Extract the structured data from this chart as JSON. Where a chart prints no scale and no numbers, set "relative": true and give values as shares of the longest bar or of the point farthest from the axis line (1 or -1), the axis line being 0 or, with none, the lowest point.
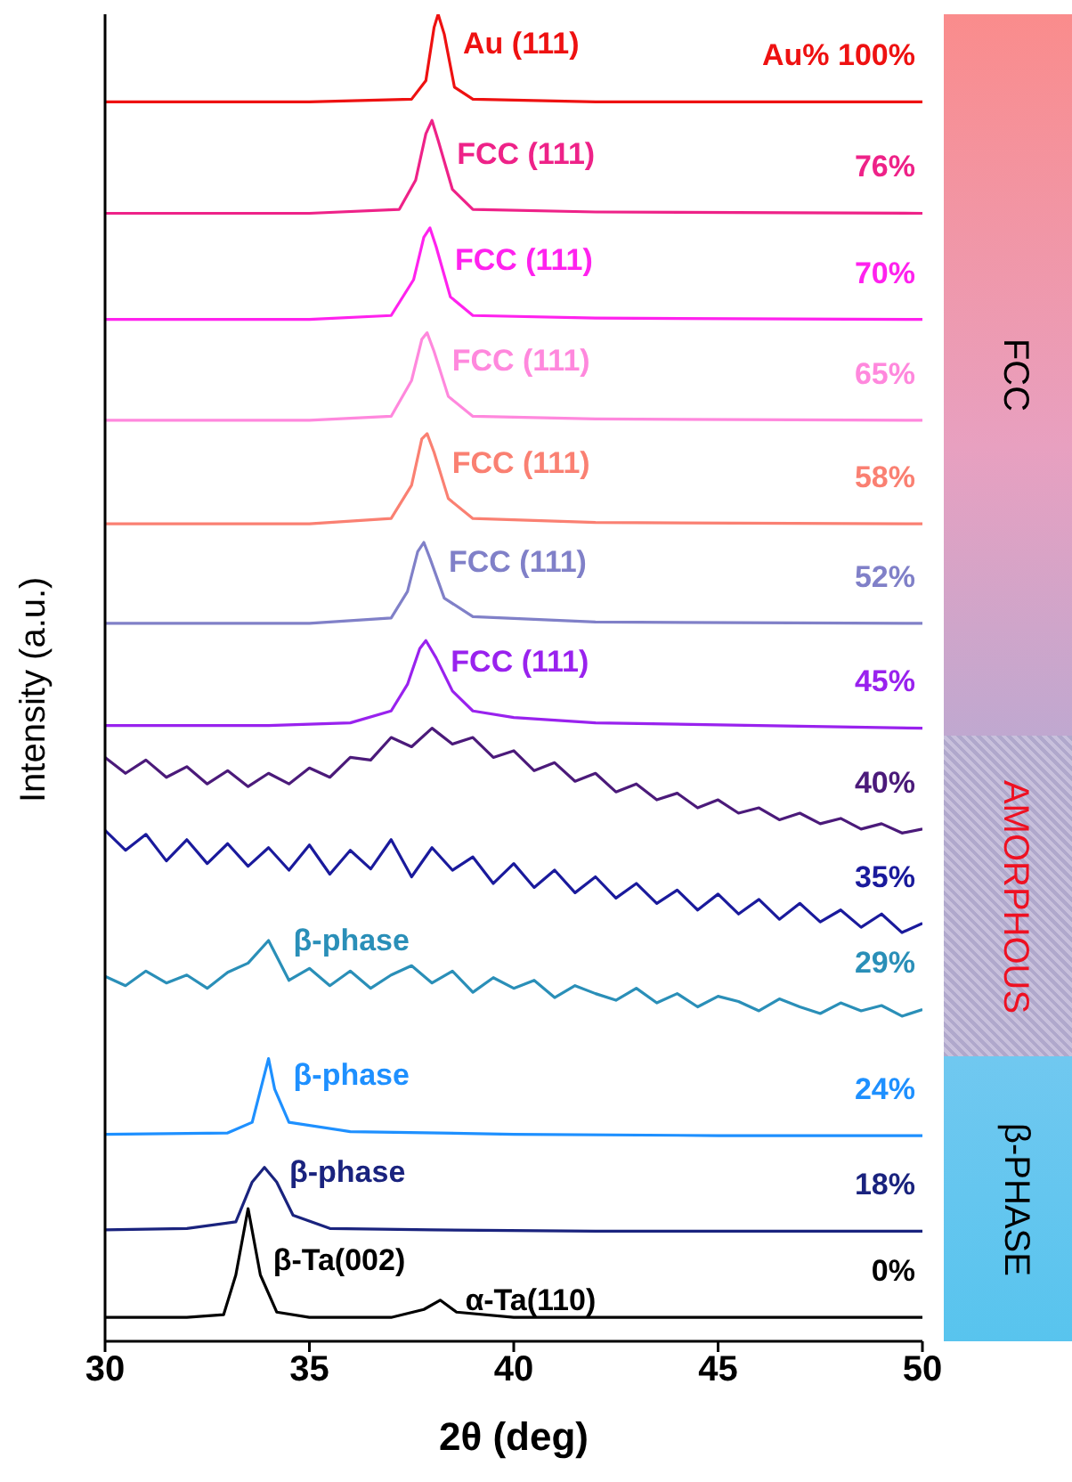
{
  "chart_data": {
    "type": "line",
    "xlabel": "2θ (deg)",
    "ylabel": "Intensity (a.u.)",
    "relative": true,
    "xlim": [
      30,
      50
    ],
    "xticks": [
      30,
      35,
      40,
      45,
      50
    ],
    "series": [
      {
        "name": "Au% 100%",
        "color": "#ee1111",
        "x": [
          30,
          35,
          37.5,
          37.85,
          38.05,
          38.15,
          38.3,
          38.55,
          39,
          42,
          50
        ],
        "values": [
          0.934,
          0.934,
          0.936,
          0.95,
          0.99,
          1,
          0.985,
          0.945,
          0.936,
          0.934,
          0.934
        ]
      },
      {
        "name": "76%",
        "color": "#ee2288",
        "x": [
          30,
          35,
          37.2,
          37.6,
          37.85,
          38.0,
          38.15,
          38.5,
          39,
          42,
          50
        ],
        "values": [
          0.85,
          0.85,
          0.853,
          0.875,
          0.91,
          0.92,
          0.905,
          0.868,
          0.853,
          0.851,
          0.85
        ]
      },
      {
        "name": "70%",
        "color": "#ff22ee",
        "x": [
          30,
          35,
          37,
          37.55,
          37.8,
          37.95,
          38.1,
          38.45,
          39,
          42,
          50
        ],
        "values": [
          0.77,
          0.77,
          0.773,
          0.8,
          0.832,
          0.839,
          0.825,
          0.787,
          0.773,
          0.771,
          0.77
        ]
      },
      {
        "name": "65%",
        "color": "#ff88dd",
        "x": [
          30,
          35,
          37,
          37.5,
          37.75,
          37.88,
          38.05,
          38.4,
          39,
          42,
          50
        ],
        "values": [
          0.694,
          0.694,
          0.697,
          0.724,
          0.755,
          0.76,
          0.746,
          0.712,
          0.697,
          0.695,
          0.694
        ]
      },
      {
        "name": "58%",
        "color": "#fa8072",
        "x": [
          30,
          35,
          37,
          37.5,
          37.75,
          37.88,
          38.05,
          38.4,
          39,
          42,
          50
        ],
        "values": [
          0.616,
          0.616,
          0.62,
          0.645,
          0.68,
          0.684,
          0.67,
          0.635,
          0.62,
          0.617,
          0.616
        ]
      },
      {
        "name": "52%",
        "color": "#8080c8",
        "x": [
          30,
          35,
          37,
          37.4,
          37.65,
          37.8,
          37.95,
          38.3,
          39,
          42,
          50
        ],
        "values": [
          0.541,
          0.541,
          0.545,
          0.565,
          0.595,
          0.602,
          0.59,
          0.56,
          0.546,
          0.542,
          0.541
        ]
      },
      {
        "name": "45%",
        "color": "#9922ee",
        "x": [
          30,
          34,
          36,
          37,
          37.4,
          37.7,
          37.85,
          38.1,
          38.5,
          39,
          40,
          42,
          46,
          50
        ],
        "values": [
          0.464,
          0.464,
          0.466,
          0.475,
          0.495,
          0.522,
          0.528,
          0.515,
          0.49,
          0.475,
          0.47,
          0.466,
          0.464,
          0.462
        ]
      },
      {
        "name": "40%",
        "color": "#4b1a7a",
        "x": [
          30,
          30.5,
          31,
          31.5,
          32,
          32.5,
          33,
          33.5,
          34,
          34.5,
          35,
          35.5,
          36,
          36.5,
          37,
          37.5,
          38,
          38.5,
          39,
          39.5,
          40,
          40.5,
          41,
          41.5,
          42,
          42.5,
          43,
          43.5,
          44,
          44.5,
          45,
          45.5,
          46,
          46.5,
          47,
          47.5,
          48,
          48.5,
          49,
          49.5,
          50
        ],
        "values": [
          0.44,
          0.428,
          0.438,
          0.425,
          0.433,
          0.42,
          0.43,
          0.418,
          0.428,
          0.42,
          0.432,
          0.425,
          0.44,
          0.438,
          0.455,
          0.448,
          0.462,
          0.45,
          0.455,
          0.44,
          0.445,
          0.43,
          0.436,
          0.422,
          0.428,
          0.414,
          0.42,
          0.408,
          0.413,
          0.402,
          0.408,
          0.398,
          0.402,
          0.393,
          0.398,
          0.39,
          0.394,
          0.386,
          0.39,
          0.383,
          0.386
        ]
      },
      {
        "name": "35%",
        "color": "#1a1a9c",
        "x": [
          30,
          30.5,
          31,
          31.5,
          32,
          32.5,
          33,
          33.5,
          34,
          34.5,
          35,
          35.5,
          36,
          36.5,
          37,
          37.5,
          38,
          38.5,
          39,
          39.5,
          40,
          40.5,
          41,
          41.5,
          42,
          42.5,
          43,
          43.5,
          44,
          44.5,
          45,
          45.5,
          46,
          46.5,
          47,
          47.5,
          48,
          48.5,
          49,
          49.5,
          50
        ],
        "values": [
          0.385,
          0.37,
          0.382,
          0.362,
          0.378,
          0.36,
          0.375,
          0.358,
          0.372,
          0.355,
          0.374,
          0.352,
          0.37,
          0.356,
          0.378,
          0.35,
          0.372,
          0.355,
          0.365,
          0.345,
          0.36,
          0.342,
          0.355,
          0.338,
          0.35,
          0.334,
          0.345,
          0.33,
          0.34,
          0.325,
          0.337,
          0.322,
          0.333,
          0.318,
          0.33,
          0.316,
          0.325,
          0.312,
          0.322,
          0.308,
          0.315
        ]
      },
      {
        "name": "29%",
        "color": "#2a8fb8",
        "x": [
          30,
          30.5,
          31,
          31.5,
          32,
          32.5,
          33,
          33.5,
          34,
          34.5,
          35,
          35.5,
          36,
          36.5,
          37,
          37.5,
          38,
          38.5,
          39,
          39.5,
          40,
          40.5,
          41,
          41.5,
          42,
          42.5,
          43,
          43.5,
          44,
          44.5,
          45,
          45.5,
          46,
          46.5,
          47,
          47.5,
          48,
          48.5,
          49,
          49.5,
          50
        ],
        "values": [
          0.275,
          0.268,
          0.279,
          0.27,
          0.276,
          0.266,
          0.278,
          0.285,
          0.302,
          0.272,
          0.281,
          0.268,
          0.279,
          0.266,
          0.276,
          0.283,
          0.27,
          0.279,
          0.263,
          0.274,
          0.266,
          0.272,
          0.259,
          0.268,
          0.262,
          0.257,
          0.266,
          0.255,
          0.262,
          0.252,
          0.26,
          0.256,
          0.249,
          0.258,
          0.252,
          0.247,
          0.255,
          0.249,
          0.253,
          0.245,
          0.25
        ]
      },
      {
        "name": "24%",
        "color": "#1e90ff",
        "x": [
          30,
          33,
          33.6,
          33.85,
          34.0,
          34.15,
          34.5,
          36,
          40,
          45,
          50
        ],
        "values": [
          0.156,
          0.157,
          0.165,
          0.195,
          0.213,
          0.19,
          0.165,
          0.158,
          0.156,
          0.155,
          0.155
        ]
      },
      {
        "name": "18%",
        "color": "#1a237e",
        "x": [
          30,
          32,
          33.2,
          33.6,
          33.9,
          34.2,
          34.6,
          35.5,
          38,
          42,
          50
        ],
        "values": [
          0.084,
          0.085,
          0.09,
          0.12,
          0.131,
          0.12,
          0.095,
          0.085,
          0.084,
          0.083,
          0.083
        ]
      },
      {
        "name": "0%",
        "color": "#000000",
        "x": [
          30,
          32,
          32.9,
          33.2,
          33.5,
          33.8,
          34.2,
          35,
          37,
          37.8,
          38.2,
          38.6,
          40,
          45,
          50
        ],
        "values": [
          0.018,
          0.018,
          0.02,
          0.05,
          0.1,
          0.05,
          0.022,
          0.018,
          0.018,
          0.024,
          0.031,
          0.022,
          0.018,
          0.018,
          0.018
        ]
      }
    ],
    "annotations": [
      {
        "text": "Au (111)",
        "x": 38.15,
        "y": 1
      },
      {
        "text": "FCC (111)",
        "x": 38.0,
        "y": 0.92
      },
      {
        "text": "FCC (111)",
        "x": 37.95,
        "y": 0.839
      },
      {
        "text": "FCC (111)",
        "x": 37.88,
        "y": 0.76
      },
      {
        "text": "FCC (111)",
        "x": 37.88,
        "y": 0.684
      },
      {
        "text": "FCC (111)",
        "x": 37.8,
        "y": 0.602
      },
      {
        "text": "FCC (111)",
        "x": 37.85,
        "y": 0.528
      },
      {
        "text": "β-phase",
        "x": 34,
        "y": 0.302
      },
      {
        "text": "β-phase",
        "x": 34.0,
        "y": 0.213
      },
      {
        "text": "β-phase",
        "x": 33.9,
        "y": 0.131
      },
      {
        "text": "β-Ta(002)",
        "x": 33.5,
        "y": 0.1
      },
      {
        "text": "α-Ta(110)",
        "x": 38.2,
        "y": 0.031
      },
      "FCC",
      "AMORPHOUS",
      "β-PHASE"
    ]
  }
}
